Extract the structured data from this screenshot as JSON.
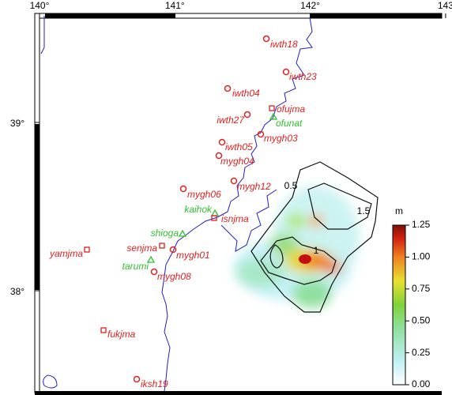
{
  "map": {
    "xticks": [
      {
        "value": 140,
        "label": "140°"
      },
      {
        "value": 141,
        "label": "141°"
      },
      {
        "value": 142,
        "label": "142°"
      },
      143
    ],
    "yticks": [
      {
        "value": 39,
        "label": "39°"
      },
      {
        "value": 38,
        "label": "38°"
      }
    ],
    "stations": [
      {
        "label": "iwth18",
        "symbol": "circle",
        "color": "#e02020"
      },
      {
        "label": "iwth23",
        "symbol": "circle",
        "color": "#e02020"
      },
      {
        "label": "iwth04",
        "symbol": "circle",
        "color": "#e02020"
      },
      {
        "label": "ofujma",
        "symbol": "square",
        "color": "#e02020"
      },
      {
        "label": "ofunat",
        "symbol": "triangle",
        "color": "#30c030"
      },
      {
        "label": "iwth27",
        "symbol": "circle",
        "color": "#e02020"
      },
      {
        "label": "mygh03",
        "symbol": "circle",
        "color": "#e02020"
      },
      {
        "label": "iwth05",
        "symbol": "circle",
        "color": "#e02020"
      },
      {
        "label": "mygh04",
        "symbol": "circle",
        "color": "#e02020"
      },
      {
        "label": "mygh12",
        "symbol": "circle",
        "color": "#e02020"
      },
      {
        "label": "mygh06",
        "symbol": "circle",
        "color": "#e02020"
      },
      {
        "label": "kaihok",
        "symbol": "triangle",
        "color": "#30c030"
      },
      {
        "label": "isnjma",
        "symbol": "square",
        "color": "#e02020"
      },
      {
        "label": "shioga",
        "symbol": "triangle",
        "color": "#30c030"
      },
      {
        "label": "yamjma",
        "symbol": "square",
        "color": "#e02020"
      },
      {
        "label": "senjma",
        "symbol": "square",
        "color": "#e02020"
      },
      {
        "label": "mygh01",
        "symbol": "circle",
        "color": "#e02020"
      },
      {
        "label": "tarumi",
        "symbol": "triangle",
        "color": "#30c030"
      },
      {
        "label": "mygh08",
        "symbol": "circle",
        "color": "#e02020"
      },
      {
        "label": "fukjma",
        "symbol": "square",
        "color": "#e02020"
      },
      {
        "label": "iksh19",
        "symbol": "circle",
        "color": "#e02020"
      }
    ],
    "contours": [
      0.5,
      1,
      1.5
    ],
    "colorbar": {
      "title": "m",
      "lim": [
        0,
        1.25
      ],
      "ticks": [
        1.25,
        {
          "value": 1,
          "label": "1.00"
        },
        0.75,
        {
          "value": 0.5,
          "label": "0.50"
        },
        0.25,
        {
          "value": 0,
          "label": "0.00"
        }
      ]
    }
  }
}
